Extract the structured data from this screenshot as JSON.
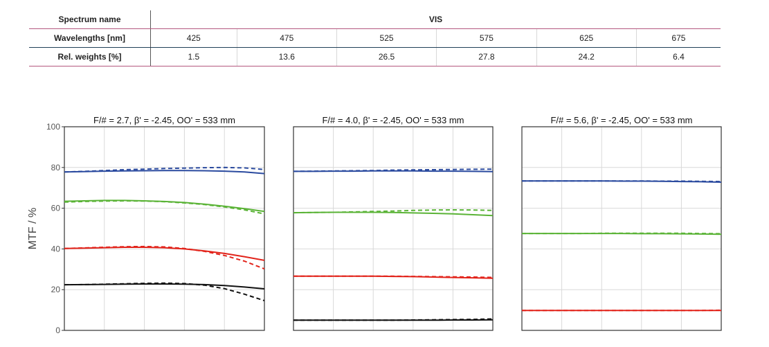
{
  "table": {
    "row_spectrum": {
      "label": "Spectrum name",
      "value": "VIS"
    },
    "row_wavelengths": {
      "label": "Wavelengths [nm]",
      "values": [
        "425",
        "475",
        "525",
        "575",
        "625",
        "675"
      ]
    },
    "row_weights": {
      "label": "Rel. weights [%]",
      "values": [
        "1.5",
        "13.6",
        "26.5",
        "27.8",
        "24.2",
        "6.4"
      ]
    }
  },
  "chart_data": [
    {
      "type": "line",
      "title": "F/# = 2.7, β' = -2.45, OO' = 533 mm",
      "ylabel": "MTF / %",
      "ylim": [
        0,
        100
      ],
      "yticks": [
        "0",
        "20",
        "40",
        "60",
        "80",
        "100"
      ],
      "xlim": [
        0,
        1
      ],
      "grid": true,
      "x": [
        0,
        0.1,
        0.2,
        0.3,
        0.4,
        0.5,
        0.6,
        0.7,
        0.8,
        0.9,
        1.0
      ],
      "series": [
        {
          "color": "#2a4a9f",
          "style": "solid",
          "values": [
            77.8,
            78.0,
            78.2,
            78.3,
            78.4,
            78.5,
            78.5,
            78.4,
            78.2,
            77.8,
            77.0
          ]
        },
        {
          "color": "#2a4a9f",
          "style": "dashed",
          "values": [
            77.8,
            78.1,
            78.5,
            78.9,
            79.2,
            79.5,
            79.7,
            79.9,
            80.0,
            79.8,
            79.0
          ]
        },
        {
          "color": "#5ab336",
          "style": "solid",
          "values": [
            63.4,
            63.6,
            63.8,
            63.8,
            63.6,
            63.3,
            62.8,
            62.0,
            61.0,
            59.8,
            58.4
          ]
        },
        {
          "color": "#5ab336",
          "style": "dashed",
          "values": [
            63.0,
            63.3,
            63.5,
            63.6,
            63.5,
            63.2,
            62.6,
            61.8,
            60.6,
            59.2,
            57.2
          ]
        },
        {
          "color": "#e2231a",
          "style": "solid",
          "values": [
            40.2,
            40.4,
            40.6,
            40.8,
            40.8,
            40.6,
            40.0,
            39.0,
            37.8,
            36.2,
            34.4
          ]
        },
        {
          "color": "#e2231a",
          "style": "dashed",
          "values": [
            40.2,
            40.5,
            40.8,
            41.1,
            41.2,
            41.0,
            40.2,
            38.8,
            36.8,
            34.0,
            30.2
          ]
        },
        {
          "color": "#111111",
          "style": "solid",
          "values": [
            22.4,
            22.5,
            22.6,
            22.7,
            22.8,
            22.8,
            22.7,
            22.5,
            22.0,
            21.3,
            20.4
          ]
        },
        {
          "color": "#111111",
          "style": "dashed",
          "values": [
            22.4,
            22.5,
            22.7,
            22.9,
            23.1,
            23.2,
            23.0,
            22.2,
            20.5,
            17.8,
            14.6
          ]
        }
      ]
    },
    {
      "type": "line",
      "title": "F/# = 4.0, β' = -2.45, OO' = 533 mm",
      "ylim": [
        0,
        100
      ],
      "xlim": [
        0,
        1
      ],
      "grid": true,
      "x": [
        0,
        0.1,
        0.2,
        0.3,
        0.4,
        0.5,
        0.6,
        0.7,
        0.8,
        0.9,
        1.0
      ],
      "series": [
        {
          "color": "#2a4a9f",
          "style": "solid",
          "values": [
            78.1,
            78.1,
            78.2,
            78.2,
            78.3,
            78.3,
            78.3,
            78.2,
            78.2,
            78.1,
            78.0
          ]
        },
        {
          "color": "#2a4a9f",
          "style": "dashed",
          "values": [
            78.1,
            78.2,
            78.3,
            78.4,
            78.5,
            78.7,
            78.8,
            78.9,
            79.0,
            79.1,
            79.2
          ]
        },
        {
          "color": "#5ab336",
          "style": "solid",
          "values": [
            57.8,
            57.9,
            58.0,
            58.0,
            58.0,
            57.9,
            57.7,
            57.5,
            57.2,
            56.8,
            56.4
          ]
        },
        {
          "color": "#5ab336",
          "style": "dashed",
          "values": [
            57.8,
            57.9,
            58.0,
            58.2,
            58.4,
            58.6,
            58.9,
            59.1,
            59.2,
            59.1,
            58.9
          ]
        },
        {
          "color": "#e2231a",
          "style": "solid",
          "values": [
            26.6,
            26.6,
            26.6,
            26.6,
            26.6,
            26.5,
            26.4,
            26.2,
            26.0,
            25.8,
            25.6
          ]
        },
        {
          "color": "#e2231a",
          "style": "dashed",
          "values": [
            26.6,
            26.6,
            26.6,
            26.6,
            26.6,
            26.6,
            26.5,
            26.4,
            26.3,
            26.2,
            26.0
          ]
        },
        {
          "color": "#111111",
          "style": "solid",
          "values": [
            5.0,
            5.0,
            5.0,
            5.0,
            5.0,
            5.0,
            5.0,
            5.0,
            5.1,
            5.1,
            5.2
          ]
        },
        {
          "color": "#111111",
          "style": "dashed",
          "values": [
            5.0,
            5.0,
            5.0,
            5.0,
            5.0,
            5.0,
            5.1,
            5.2,
            5.3,
            5.4,
            5.6
          ]
        }
      ]
    },
    {
      "type": "line",
      "title": "F/# = 5.6, β' = -2.45, OO' = 533 mm",
      "ylim": [
        0,
        100
      ],
      "xlim": [
        0,
        1
      ],
      "grid": true,
      "x": [
        0,
        0.1,
        0.2,
        0.3,
        0.4,
        0.5,
        0.6,
        0.7,
        0.8,
        0.9,
        1.0
      ],
      "series": [
        {
          "color": "#2a4a9f",
          "style": "solid",
          "values": [
            73.4,
            73.4,
            73.4,
            73.4,
            73.4,
            73.3,
            73.3,
            73.2,
            73.1,
            73.0,
            72.8
          ]
        },
        {
          "color": "#2a4a9f",
          "style": "dashed",
          "values": [
            73.4,
            73.4,
            73.4,
            73.4,
            73.4,
            73.4,
            73.4,
            73.3,
            73.3,
            73.2,
            73.1
          ]
        },
        {
          "color": "#5ab336",
          "style": "solid",
          "values": [
            47.6,
            47.6,
            47.6,
            47.6,
            47.6,
            47.6,
            47.5,
            47.5,
            47.4,
            47.3,
            47.2
          ]
        },
        {
          "color": "#5ab336",
          "style": "dashed",
          "values": [
            47.6,
            47.6,
            47.6,
            47.6,
            47.7,
            47.7,
            47.7,
            47.7,
            47.7,
            47.6,
            47.5
          ]
        },
        {
          "color": "#e2231a",
          "style": "solid",
          "values": [
            9.8,
            9.8,
            9.8,
            9.8,
            9.8,
            9.8,
            9.8,
            9.8,
            9.8,
            9.8,
            9.8
          ]
        },
        {
          "color": "#e2231a",
          "style": "dashed",
          "values": [
            9.8,
            9.8,
            9.8,
            9.8,
            9.8,
            9.8,
            9.8,
            9.8,
            9.8,
            9.8,
            9.9
          ]
        }
      ]
    }
  ]
}
